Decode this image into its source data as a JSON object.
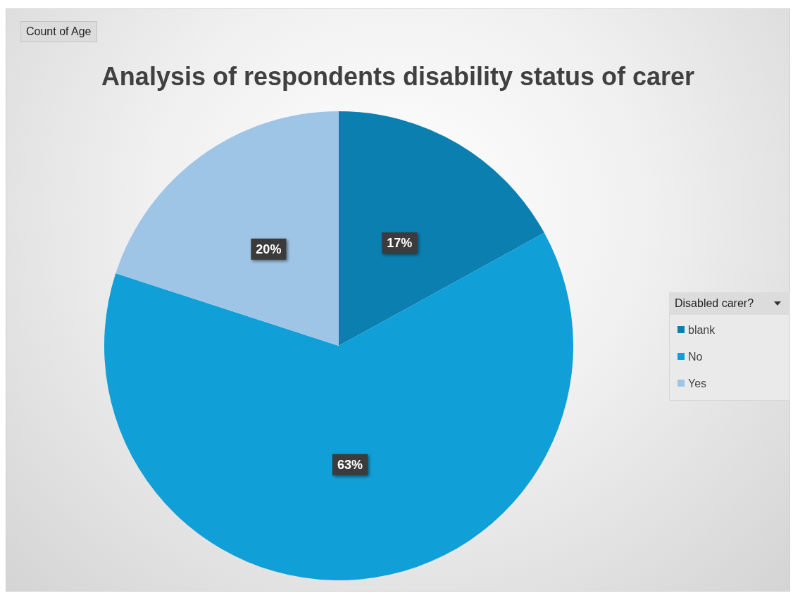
{
  "chart_data": {
    "type": "pie",
    "title": "Analysis of respondents disability status of carer",
    "legend_title": "Disabled carer?",
    "annotations": [
      "Count of Age"
    ],
    "categories": [
      "blank",
      "No",
      "Yes"
    ],
    "values": [
      17,
      63,
      20
    ],
    "colors": [
      "#0a7fb0",
      "#119fd8",
      "#9fc5e6"
    ],
    "value_labels": [
      "17%",
      "63%",
      "20%"
    ],
    "legend": "right"
  }
}
